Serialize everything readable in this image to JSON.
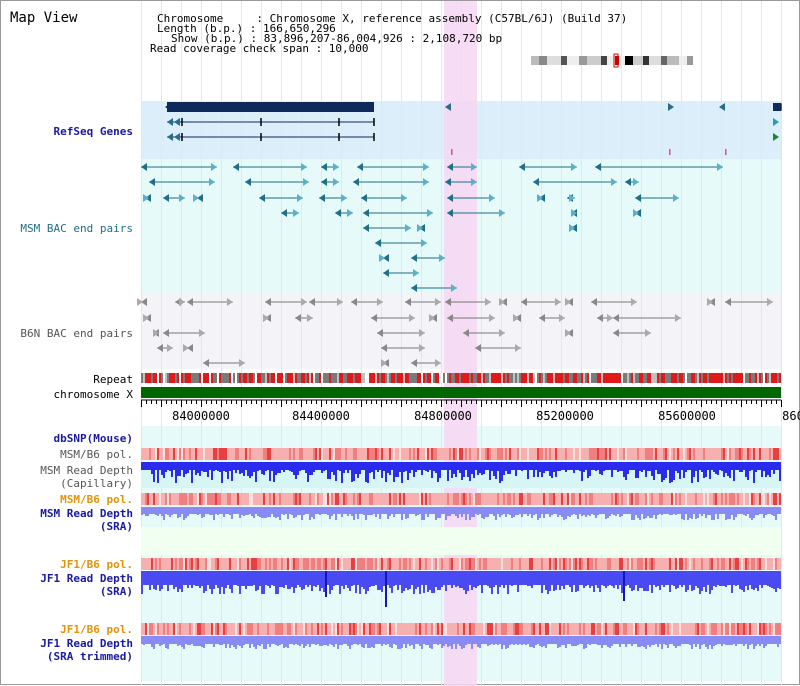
{
  "title": "Map View",
  "info": {
    "line1": "Chromosome     : Chromosome X, reference assembly (C57BL/6J) (Build 37)",
    "line2": "Length (b.p.) : 166,650,296",
    "line3": "Show (b.p.) : 83,896,207-86,004,926 : 2,108,720 bp",
    "line4": "Read coverage check span : 10,000"
  },
  "tracks": {
    "refseq": "RefSeq Genes",
    "msm_bac": "MSM BAC end pairs",
    "b6n_bac": "B6N BAC end pairs",
    "repeat": "Repeat",
    "chromosome": "chromosome X",
    "dbsnp": "dbSNP(Mouse)",
    "msm_b6_pol_1": "MSM/B6 pol.",
    "msm_read_depth_cap_1": "MSM Read Depth",
    "msm_read_depth_cap_2": "(Capillary)",
    "msm_b6_pol_2": "MSM/B6 pol.",
    "msm_read_depth_sra_1": "MSM Read Depth",
    "msm_read_depth_sra_2": "(SRA)",
    "jf1_b6_pol_1": "JF1/B6 pol.",
    "jf1_read_depth_sra_1": "JF1 Read Depth",
    "jf1_read_depth_sra_2": "(SRA)",
    "jf1_b6_pol_2": "JF1/B6 pol.",
    "jf1_read_depth_trim_1": "JF1 Read Depth",
    "jf1_read_depth_trim_2": "(SRA trimmed)"
  },
  "axis": {
    "ticks": [
      "84000000",
      "84400000",
      "84800000",
      "85200000",
      "85600000",
      "860"
    ]
  },
  "colors": {
    "highlight": "#f5d6f2",
    "refseq_bg": "#dbeef9",
    "track_bg": "#e6fafa",
    "chromosome": "#006600",
    "gene_dark": "#0d2a5a",
    "msm_bac": "#1f6f86",
    "b6n_bac": "#777777",
    "depth_blue": "#2b2bf0",
    "depth_light": "#8a8af5"
  }
}
